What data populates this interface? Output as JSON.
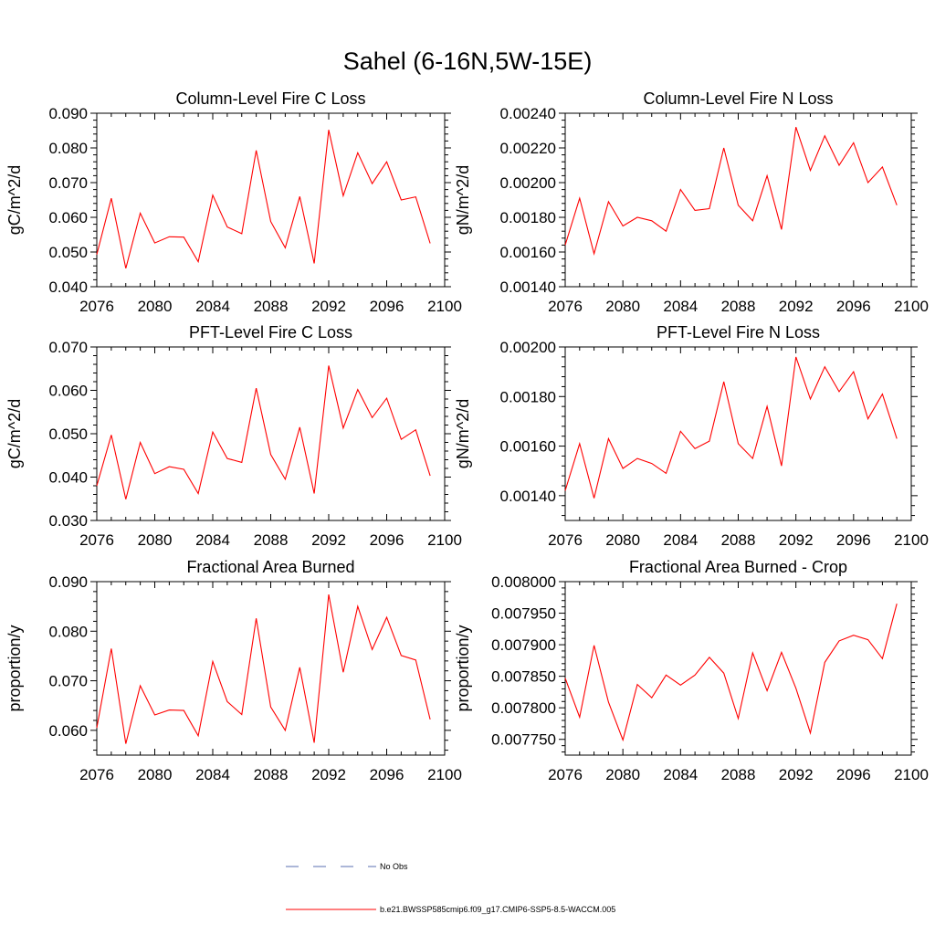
{
  "figure": {
    "title": "Sahel (6-16N,5W-15E)",
    "series_color": "#ff0000",
    "obs_color": "#5a6fb0"
  },
  "legend": {
    "obs_label": "No Obs",
    "model_label": "b.e21.BWSSP585cmip6.f09_g17.CMIP6-SSP5-8.5-WACCM.005"
  },
  "chart_data": [
    {
      "type": "line",
      "title": "Column-Level Fire C Loss",
      "xlabel": "",
      "ylabel": "gC/m^2/d",
      "xlim": [
        2076,
        2100
      ],
      "ylim": [
        0.04,
        0.09
      ],
      "xticks": [
        2076,
        2080,
        2084,
        2088,
        2092,
        2096,
        2100
      ],
      "yticks": [
        0.04,
        0.05,
        0.06,
        0.07,
        0.08,
        0.09
      ],
      "yticklabels": [
        "0.040",
        "0.050",
        "0.060",
        "0.070",
        "0.080",
        "0.090"
      ],
      "x": [
        2076,
        2077,
        2078,
        2079,
        2080,
        2081,
        2082,
        2083,
        2084,
        2085,
        2086,
        2087,
        2088,
        2089,
        2090,
        2091,
        2092,
        2093,
        2094,
        2095,
        2096,
        2097,
        2098,
        2099
      ],
      "series": [
        {
          "name": "b.e21.BWSSP585cmip6.f09_g17.CMIP6-SSP5-8.5-WACCM.005",
          "values": [
            0.0493,
            0.0655,
            0.0453,
            0.0612,
            0.0526,
            0.0544,
            0.0543,
            0.0472,
            0.0664,
            0.0572,
            0.0553,
            0.0793,
            0.0588,
            0.0512,
            0.066,
            0.0467,
            0.0852,
            0.0662,
            0.0786,
            0.0697,
            0.076,
            0.065,
            0.0659,
            0.0525
          ]
        }
      ]
    },
    {
      "type": "line",
      "title": "Column-Level Fire N Loss",
      "xlabel": "",
      "ylabel": "gN/m^2/d",
      "xlim": [
        2076,
        2100
      ],
      "ylim": [
        0.0014,
        0.0024
      ],
      "xticks": [
        2076,
        2080,
        2084,
        2088,
        2092,
        2096,
        2100
      ],
      "yticks": [
        0.0014,
        0.0016,
        0.0018,
        0.002,
        0.0022,
        0.0024
      ],
      "yticklabels": [
        "0.00140",
        "0.00160",
        "0.00180",
        "0.00200",
        "0.00220",
        "0.00240"
      ],
      "x": [
        2076,
        2077,
        2078,
        2079,
        2080,
        2081,
        2082,
        2083,
        2084,
        2085,
        2086,
        2087,
        2088,
        2089,
        2090,
        2091,
        2092,
        2093,
        2094,
        2095,
        2096,
        2097,
        2098,
        2099
      ],
      "series": [
        {
          "name": "b.e21.BWSSP585cmip6.f09_g17.CMIP6-SSP5-8.5-WACCM.005",
          "values": [
            0.00164,
            0.00191,
            0.00159,
            0.00189,
            0.00175,
            0.0018,
            0.00178,
            0.00172,
            0.00196,
            0.00184,
            0.00185,
            0.0022,
            0.00187,
            0.00178,
            0.00204,
            0.00173,
            0.00232,
            0.00207,
            0.00227,
            0.0021,
            0.00223,
            0.002,
            0.00209,
            0.00187
          ]
        }
      ]
    },
    {
      "type": "line",
      "title": "PFT-Level Fire C Loss",
      "xlabel": "",
      "ylabel": "gC/m^2/d",
      "xlim": [
        2076,
        2100
      ],
      "ylim": [
        0.03,
        0.07
      ],
      "xticks": [
        2076,
        2080,
        2084,
        2088,
        2092,
        2096,
        2100
      ],
      "yticks": [
        0.03,
        0.04,
        0.05,
        0.06,
        0.07
      ],
      "yticklabels": [
        "0.030",
        "0.040",
        "0.050",
        "0.060",
        "0.070"
      ],
      "x": [
        2076,
        2077,
        2078,
        2079,
        2080,
        2081,
        2082,
        2083,
        2084,
        2085,
        2086,
        2087,
        2088,
        2089,
        2090,
        2091,
        2092,
        2093,
        2094,
        2095,
        2096,
        2097,
        2098,
        2099
      ],
      "series": [
        {
          "name": "b.e21.BWSSP585cmip6.f09_g17.CMIP6-SSP5-8.5-WACCM.005",
          "values": [
            0.038,
            0.0497,
            0.0349,
            0.048,
            0.0408,
            0.0424,
            0.0418,
            0.0362,
            0.0504,
            0.0443,
            0.0434,
            0.0605,
            0.0452,
            0.0395,
            0.0515,
            0.0362,
            0.0657,
            0.0513,
            0.0602,
            0.0537,
            0.0582,
            0.0487,
            0.0509,
            0.0403
          ]
        }
      ]
    },
    {
      "type": "line",
      "title": "PFT-Level Fire N Loss",
      "xlabel": "",
      "ylabel": "gN/m^2/d",
      "xlim": [
        2076,
        2100
      ],
      "ylim": [
        0.0013,
        0.002
      ],
      "xticks": [
        2076,
        2080,
        2084,
        2088,
        2092,
        2096,
        2100
      ],
      "yticks": [
        0.0014,
        0.0016,
        0.0018,
        0.002
      ],
      "yticklabels": [
        "0.00140",
        "0.00160",
        "0.00180",
        "0.00200"
      ],
      "x": [
        2076,
        2077,
        2078,
        2079,
        2080,
        2081,
        2082,
        2083,
        2084,
        2085,
        2086,
        2087,
        2088,
        2089,
        2090,
        2091,
        2092,
        2093,
        2094,
        2095,
        2096,
        2097,
        2098,
        2099
      ],
      "series": [
        {
          "name": "b.e21.BWSSP585cmip6.f09_g17.CMIP6-SSP5-8.5-WACCM.005",
          "values": [
            0.00142,
            0.00161,
            0.00139,
            0.00163,
            0.00151,
            0.00155,
            0.00153,
            0.00149,
            0.00166,
            0.00159,
            0.00162,
            0.00186,
            0.00161,
            0.00155,
            0.00176,
            0.00152,
            0.00196,
            0.00179,
            0.00192,
            0.00182,
            0.0019,
            0.00171,
            0.00181,
            0.00163
          ]
        }
      ]
    },
    {
      "type": "line",
      "title": "Fractional Area Burned",
      "xlabel": "",
      "ylabel": "proportion/y",
      "xlim": [
        2076,
        2100
      ],
      "ylim": [
        0.055,
        0.09
      ],
      "xticks": [
        2076,
        2080,
        2084,
        2088,
        2092,
        2096,
        2100
      ],
      "yticks": [
        0.06,
        0.07,
        0.08,
        0.09
      ],
      "yticklabels": [
        "0.060",
        "0.070",
        "0.080",
        "0.090"
      ],
      "x": [
        2076,
        2077,
        2078,
        2079,
        2080,
        2081,
        2082,
        2083,
        2084,
        2085,
        2086,
        2087,
        2088,
        2089,
        2090,
        2091,
        2092,
        2093,
        2094,
        2095,
        2096,
        2097,
        2098,
        2099
      ],
      "series": [
        {
          "name": "b.e21.BWSSP585cmip6.f09_g17.CMIP6-SSP5-8.5-WACCM.005",
          "values": [
            0.0605,
            0.0765,
            0.0573,
            0.069,
            0.0631,
            0.0641,
            0.064,
            0.0589,
            0.0739,
            0.0658,
            0.0632,
            0.0826,
            0.0647,
            0.06,
            0.0727,
            0.0575,
            0.0874,
            0.0717,
            0.085,
            0.0763,
            0.0828,
            0.0751,
            0.0742,
            0.0622
          ]
        }
      ]
    },
    {
      "type": "line",
      "title": "Fractional Area Burned - Crop",
      "xlabel": "",
      "ylabel": "proportion/y",
      "xlim": [
        2076,
        2100
      ],
      "ylim": [
        0.007725,
        0.008
      ],
      "xticks": [
        2076,
        2080,
        2084,
        2088,
        2092,
        2096,
        2100
      ],
      "yticks": [
        0.00775,
        0.0078,
        0.00785,
        0.0079,
        0.00795,
        0.008
      ],
      "yticklabels": [
        "0.007750",
        "0.007800",
        "0.007850",
        "0.007900",
        "0.007950",
        "0.008000"
      ],
      "x": [
        2076,
        2077,
        2078,
        2079,
        2080,
        2081,
        2082,
        2083,
        2084,
        2085,
        2086,
        2087,
        2088,
        2089,
        2090,
        2091,
        2092,
        2093,
        2094,
        2095,
        2096,
        2097,
        2098,
        2099
      ],
      "series": [
        {
          "name": "b.e21.BWSSP585cmip6.f09_g17.CMIP6-SSP5-8.5-WACCM.005",
          "values": [
            0.007847,
            0.007785,
            0.007899,
            0.007809,
            0.007749,
            0.007837,
            0.007816,
            0.007852,
            0.007836,
            0.007852,
            0.00788,
            0.007855,
            0.007783,
            0.007887,
            0.007827,
            0.007888,
            0.007831,
            0.00776,
            0.007872,
            0.007906,
            0.007915,
            0.007908,
            0.007878,
            0.007965
          ]
        }
      ]
    }
  ]
}
